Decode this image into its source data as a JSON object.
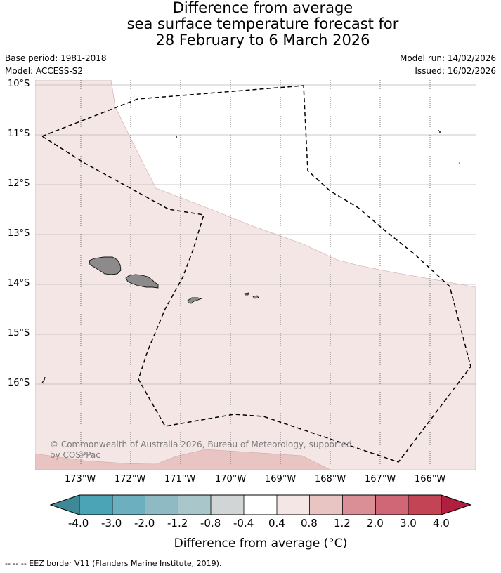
{
  "title": {
    "line1": "Difference from average",
    "line2": "sea surface temperature forecast for",
    "line3": "28 February to 6 March 2026"
  },
  "meta": {
    "base_period": "Base period: 1981-2018",
    "model": "Model: ACCESS-S2",
    "model_run": "Model run: 14/02/2026",
    "issued": "Issued: 16/02/2026"
  },
  "map": {
    "lat_labels": [
      "10°S",
      "11°S",
      "12°S",
      "13°S",
      "14°S",
      "15°S",
      "16°S"
    ],
    "lon_labels": [
      "173°W",
      "172°W",
      "171°W",
      "170°W",
      "169°W",
      "168°W",
      "167°W",
      "166°W"
    ],
    "copyright_line1": "© Commonwealth of Australia 2026, Bureau of Meteorology, supported",
    "copyright_line2": "by COSPPac",
    "colors": {
      "band_0_4_to_0_8": "#f4e6e5",
      "band_0_8_to_1_2": "#e8c4c2",
      "land": "#8c8a8a",
      "grid": "#b8b8b8"
    }
  },
  "colorbar": {
    "title": "Difference from average (°C)",
    "tick_labels": [
      "-4.0",
      "-3.0",
      "-2.0",
      "-1.2",
      "-0.8",
      "-0.4",
      "0.4",
      "0.8",
      "1.2",
      "2.0",
      "3.0",
      "4.0"
    ],
    "colors": [
      "#3f8897",
      "#4aa4b6",
      "#6cafbf",
      "#8fbac4",
      "#a9c6cb",
      "#d2d5d5",
      "#ffffff",
      "#f4e6e5",
      "#e8c4c2",
      "#da8e95",
      "#cf6776",
      "#c24455",
      "#b11e3e"
    ]
  },
  "footnote": "--  --  -- EEZ border V11 (Flanders Marine Institute, 2019)."
}
